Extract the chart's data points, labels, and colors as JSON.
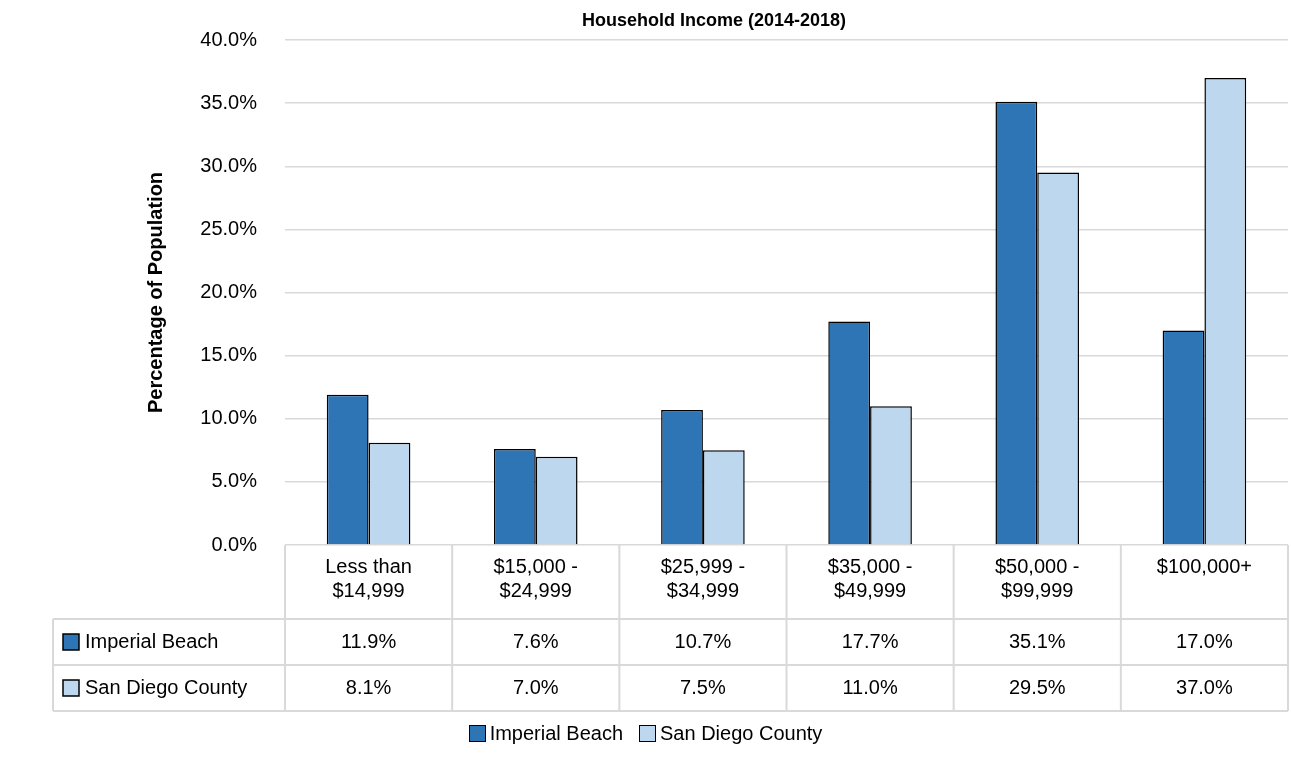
{
  "chart_data": {
    "type": "bar",
    "title": "Household Income (2014-2018)",
    "ylabel": "Percentage of Population",
    "categories": [
      "Less than $14,999",
      "$15,000 - $24,999",
      "$25,999 - $34,999",
      "$35,000 - $49,999",
      "$50,000 - $99,999",
      "$100,000+"
    ],
    "series": [
      {
        "name": "Imperial Beach",
        "color": "#2e75b6",
        "values": [
          11.9,
          7.6,
          10.7,
          17.7,
          35.1,
          17.0
        ],
        "value_labels": [
          "11.9%",
          "7.6%",
          "10.7%",
          "17.7%",
          "35.1%",
          "17.0%"
        ]
      },
      {
        "name": "San Diego County",
        "color": "#bdd7ee",
        "values": [
          8.1,
          7.0,
          7.5,
          11.0,
          29.5,
          37.0
        ],
        "value_labels": [
          "8.1%",
          "7.0%",
          "7.5%",
          "11.0%",
          "29.5%",
          "37.0%"
        ]
      }
    ],
    "ylim": [
      0,
      40
    ],
    "yticks": [
      {
        "value": 0,
        "label": "0.0%"
      },
      {
        "value": 5,
        "label": "5.0%"
      },
      {
        "value": 10,
        "label": "10.0%"
      },
      {
        "value": 15,
        "label": "15.0%"
      },
      {
        "value": 20,
        "label": "20.0%"
      },
      {
        "value": 25,
        "label": "25.0%"
      },
      {
        "value": 30,
        "label": "30.0%"
      },
      {
        "value": 35,
        "label": "35.0%"
      },
      {
        "value": 40,
        "label": "40.0%"
      }
    ],
    "grid": "y",
    "legend": "bottom"
  }
}
